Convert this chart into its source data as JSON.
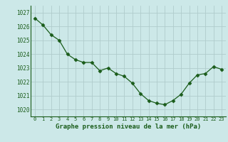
{
  "x": [
    0,
    1,
    2,
    3,
    4,
    5,
    6,
    7,
    8,
    9,
    10,
    11,
    12,
    13,
    14,
    15,
    16,
    17,
    18,
    19,
    20,
    21,
    22,
    23
  ],
  "y": [
    1026.6,
    1026.1,
    1025.4,
    1025.0,
    1024.0,
    1023.6,
    1023.4,
    1023.4,
    1022.8,
    1023.0,
    1022.6,
    1022.4,
    1021.9,
    1021.15,
    1020.65,
    1020.45,
    1020.35,
    1020.65,
    1021.1,
    1021.9,
    1022.5,
    1022.6,
    1023.1,
    1022.9
  ],
  "ylim": [
    1019.5,
    1027.5
  ],
  "yticks": [
    1020,
    1021,
    1022,
    1023,
    1024,
    1025,
    1026,
    1027
  ],
  "xlabel": "Graphe pression niveau de la mer (hPa)",
  "line_color": "#1a5c1a",
  "marker_color": "#1a5c1a",
  "bg_color": "#cce8e8",
  "grid_color": "#b0cccc",
  "tick_label_color": "#1a5c1a"
}
